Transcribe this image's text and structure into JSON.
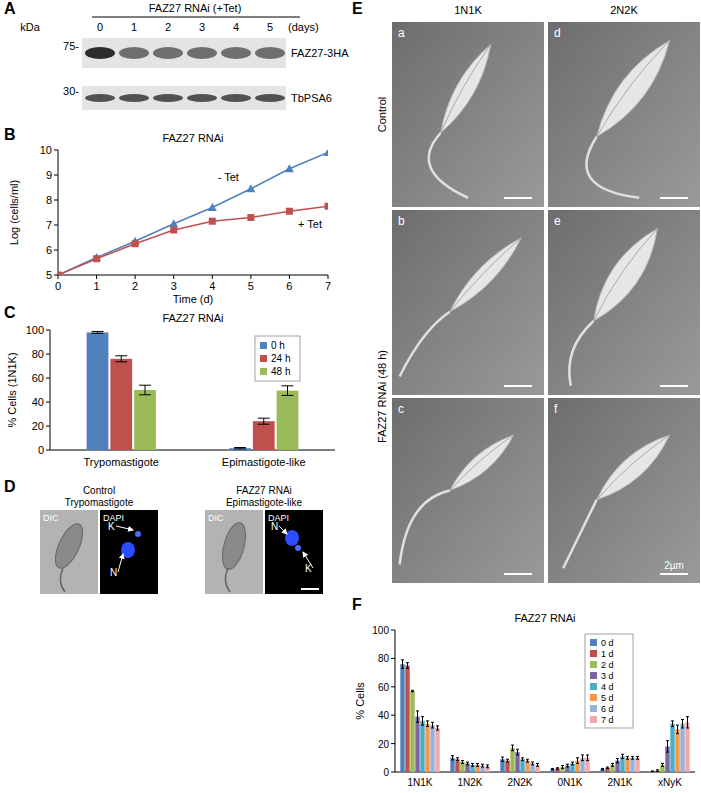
{
  "panel_labels": [
    "A",
    "B",
    "C",
    "D",
    "E",
    "F"
  ],
  "blot": {
    "title": "FAZ27 RNAi (+Tet)",
    "lanes": [
      0,
      1,
      2,
      3,
      4,
      5
    ],
    "lane_unit": "(days)",
    "mw_unit": "kDa",
    "rows": [
      {
        "marker": "75-",
        "label": "FAZ27-3HA"
      },
      {
        "marker": "30-",
        "label": "TbPSA6"
      }
    ]
  },
  "micrographs": {
    "columns": [
      {
        "title": "Control",
        "subtitle": "Trypomastigote",
        "channels": [
          "DIC",
          "DAPI"
        ],
        "pointers": [
          "K",
          "N"
        ]
      },
      {
        "title": "FAZ27 RNAi",
        "subtitle": "Epimastigote-like",
        "channels": [
          "DIC",
          "DAPI"
        ],
        "pointers": [
          "N",
          "K"
        ]
      }
    ]
  },
  "sem": {
    "columns": [
      "1N1K",
      "2N2K"
    ],
    "rows": [
      "Control",
      "FAZ27 RNAi (48 h)"
    ],
    "letters": [
      "a",
      "b",
      "c",
      "d",
      "e",
      "f"
    ],
    "scale": "2µm"
  },
  "chart_data": [
    {
      "type": "line",
      "title": "FAZ27 RNAi",
      "x_label": "Time (d)",
      "y_label": "Log (cells/ml)",
      "x": [
        0,
        1,
        2,
        3,
        4,
        5,
        6,
        7
      ],
      "xlim": [
        0,
        7
      ],
      "xticks": [
        0,
        1,
        2,
        3,
        4,
        5,
        6,
        7
      ],
      "ylim": [
        5,
        10
      ],
      "yticks": [
        5,
        6,
        7,
        8,
        9,
        10
      ],
      "series": [
        {
          "name": "- Tet",
          "color": "#4f81bd",
          "marker": "triangle",
          "values": [
            5,
            5.7,
            6.35,
            7.05,
            7.7,
            8.45,
            9.25,
            9.9
          ]
        },
        {
          "name": "+ Tet",
          "color": "#c0504d",
          "marker": "square",
          "values": [
            5,
            5.65,
            6.25,
            6.8,
            7.15,
            7.3,
            7.55,
            7.75
          ]
        }
      ]
    },
    {
      "type": "bar",
      "title": "FAZ27 RNAi",
      "y_label": "% Cells (1N1K)",
      "categories": [
        "Trypomastigote",
        "Epimastigote-like"
      ],
      "ylim": [
        0,
        100
      ],
      "yticks": [
        0,
        20,
        40,
        60,
        80,
        100
      ],
      "legend": "top-right",
      "series": [
        {
          "name": "0 h",
          "color": "#4f81bd",
          "values": [
            98,
            1.5
          ],
          "errors": [
            0.8,
            0.6
          ]
        },
        {
          "name": "24 h",
          "color": "#c0504d",
          "values": [
            76,
            24
          ],
          "errors": [
            2.5,
            2.5
          ]
        },
        {
          "name": "48 h",
          "color": "#9bbb59",
          "values": [
            50,
            49.5
          ],
          "errors": [
            4,
            4
          ]
        }
      ]
    },
    {
      "type": "bar",
      "title": "FAZ27 RNAi",
      "y_label": "% Cells",
      "categories": [
        "1N1K",
        "1N2K",
        "2N2K",
        "0N1K",
        "2N1K",
        "xNyK"
      ],
      "ylim": [
        0,
        100
      ],
      "yticks": [
        0,
        20,
        40,
        60,
        80,
        100
      ],
      "legend": "top-right",
      "series": [
        {
          "name": "0 d",
          "color": "#4f81bd",
          "values": [
            76,
            10,
            9,
            2,
            2,
            0.5
          ],
          "errors": [
            3,
            1.5,
            1.5,
            0.5,
            0.5,
            0.2
          ]
        },
        {
          "name": "1 d",
          "color": "#c0504d",
          "values": [
            75,
            9,
            8,
            2.5,
            3,
            1
          ],
          "errors": [
            2,
            1,
            1,
            0.5,
            0.5,
            0.5
          ]
        },
        {
          "name": "2 d",
          "color": "#9bbb59",
          "values": [
            57,
            7,
            17,
            3.5,
            5,
            5
          ],
          "errors": [
            0.5,
            1,
            2,
            1,
            1,
            1
          ]
        },
        {
          "name": "3 d",
          "color": "#8064a2",
          "values": [
            39,
            6,
            14,
            4.5,
            8,
            18
          ],
          "errors": [
            4,
            1,
            2,
            1,
            1.5,
            4
          ]
        },
        {
          "name": "4 d",
          "color": "#4bacc6",
          "values": [
            36,
            5,
            9,
            6,
            11,
            34
          ],
          "errors": [
            3,
            1,
            1,
            1,
            1.5,
            2
          ]
        },
        {
          "name": "5 d",
          "color": "#f79646",
          "values": [
            34,
            5,
            8,
            8,
            10,
            30
          ],
          "errors": [
            2,
            1,
            1,
            2,
            1,
            3
          ]
        },
        {
          "name": "6 d",
          "color": "#9bb0d6",
          "values": [
            33,
            4.5,
            6,
            10,
            10,
            34
          ],
          "errors": [
            2,
            1,
            1,
            2,
            1,
            3
          ]
        },
        {
          "name": "7 d",
          "color": "#f0a8a8",
          "values": [
            31,
            4,
            5,
            10,
            10,
            35
          ],
          "errors": [
            1.5,
            1,
            1,
            2,
            1,
            4
          ]
        }
      ]
    }
  ]
}
